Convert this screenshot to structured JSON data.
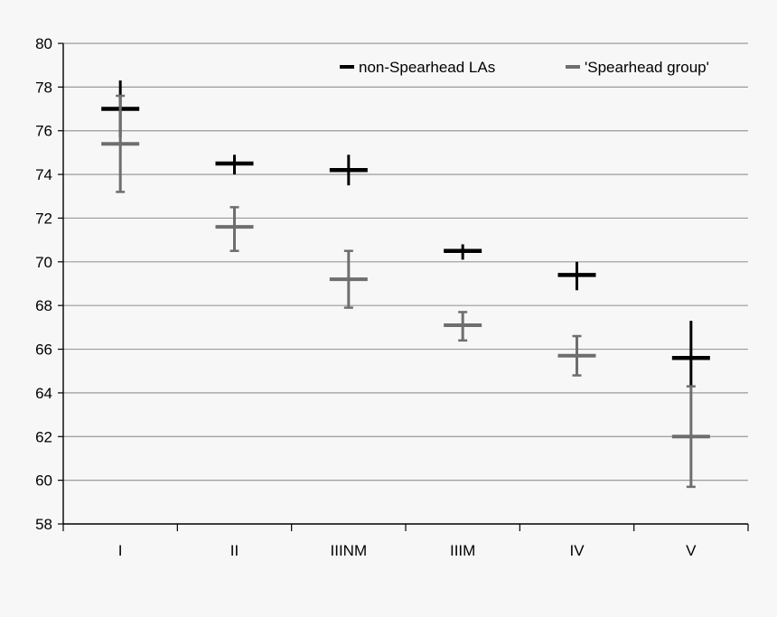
{
  "chart_data": {
    "type": "scatter",
    "title": "",
    "xlabel": "",
    "ylabel": "",
    "categories": [
      "I",
      "II",
      "IIINM",
      "IIIM",
      "IV",
      "V"
    ],
    "y_ticks": [
      "58",
      "60",
      "62",
      "64",
      "66",
      "68",
      "70",
      "72",
      "74",
      "76",
      "78",
      "80"
    ],
    "ylim": [
      58,
      80
    ],
    "grid": true,
    "legend_position": "top-right",
    "series": [
      {
        "name": "non-Spearhead LAs",
        "color": "#000000",
        "values": [
          77.0,
          74.5,
          74.2,
          70.5,
          69.4,
          65.6
        ],
        "upper": [
          78.3,
          74.9,
          74.9,
          70.8,
          70.0,
          67.3
        ],
        "lower": [
          75.7,
          74.0,
          73.5,
          70.1,
          68.7,
          64.3
        ]
      },
      {
        "name": "'Spearhead group'",
        "color": "#6e6e6e",
        "values": [
          75.4,
          71.6,
          69.2,
          67.1,
          65.7,
          62.0
        ],
        "upper": [
          77.6,
          72.5,
          70.5,
          67.7,
          66.6,
          64.3
        ],
        "lower": [
          73.2,
          70.5,
          67.9,
          66.4,
          64.8,
          59.7
        ]
      }
    ]
  }
}
